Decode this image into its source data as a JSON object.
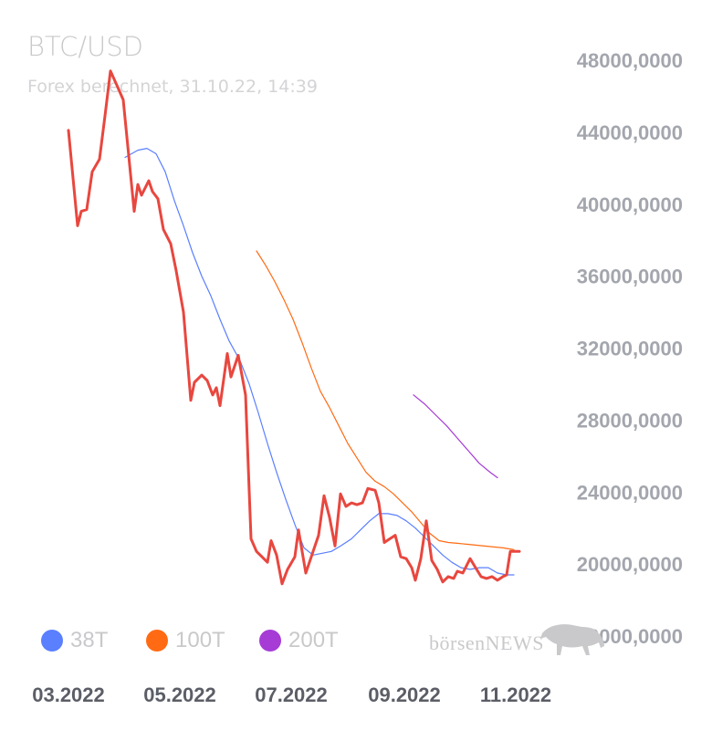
{
  "chart_data": {
    "type": "line",
    "title": "BTC/USD",
    "subtitle": "Forex berechnet, 31.10.22, 14:39",
    "x_range": [
      "2022-03-01",
      "2022-11-01"
    ],
    "ylim": [
      16000,
      48000
    ],
    "y_ticks": [
      "48000,0000",
      "44000,0000",
      "40000,0000",
      "36000,0000",
      "32000,0000",
      "28000,0000",
      "24000,0000",
      "20000,0000",
      "16000,0000"
    ],
    "y_tick_values": [
      48000,
      44000,
      40000,
      36000,
      32000,
      28000,
      24000,
      20000,
      16000
    ],
    "x_ticks": [
      "03.2022",
      "05.2022",
      "07.2022",
      "09.2022",
      "11.2022"
    ],
    "x_tick_dates": [
      "2022-03-01",
      "2022-05-01",
      "2022-07-01",
      "2022-09-01",
      "2022-11-01"
    ],
    "grid": false,
    "legend_position": "bottom-left",
    "series": [
      {
        "key": "price",
        "color": "#e8473f",
        "points": [
          [
            "2022-03-01",
            44100
          ],
          [
            "2022-03-06",
            38800
          ],
          [
            "2022-03-08",
            39600
          ],
          [
            "2022-03-11",
            39700
          ],
          [
            "2022-03-14",
            41800
          ],
          [
            "2022-03-18",
            42500
          ],
          [
            "2022-03-21",
            44900
          ],
          [
            "2022-03-24",
            47400
          ],
          [
            "2022-03-28",
            46500
          ],
          [
            "2022-03-31",
            45800
          ],
          [
            "2022-04-03",
            42700
          ],
          [
            "2022-04-06",
            39600
          ],
          [
            "2022-04-08",
            41100
          ],
          [
            "2022-04-10",
            40500
          ],
          [
            "2022-04-14",
            41300
          ],
          [
            "2022-04-16",
            40700
          ],
          [
            "2022-04-19",
            40300
          ],
          [
            "2022-04-22",
            38600
          ],
          [
            "2022-04-26",
            37800
          ],
          [
            "2022-04-29",
            36300
          ],
          [
            "2022-05-03",
            34000
          ],
          [
            "2022-05-07",
            29100
          ],
          [
            "2022-05-09",
            30100
          ],
          [
            "2022-05-13",
            30500
          ],
          [
            "2022-05-16",
            30200
          ],
          [
            "2022-05-19",
            29400
          ],
          [
            "2022-05-21",
            29800
          ],
          [
            "2022-05-23",
            28800
          ],
          [
            "2022-05-27",
            31700
          ],
          [
            "2022-05-29",
            30400
          ],
          [
            "2022-06-02",
            31600
          ],
          [
            "2022-06-06",
            29400
          ],
          [
            "2022-06-09",
            21400
          ],
          [
            "2022-06-12",
            20700
          ],
          [
            "2022-06-15",
            20400
          ],
          [
            "2022-06-18",
            20100
          ],
          [
            "2022-06-20",
            21300
          ],
          [
            "2022-06-23",
            20500
          ],
          [
            "2022-06-26",
            18900
          ],
          [
            "2022-06-29",
            19700
          ],
          [
            "2022-07-03",
            20400
          ],
          [
            "2022-07-05",
            21900
          ],
          [
            "2022-07-09",
            19500
          ],
          [
            "2022-07-13",
            20700
          ],
          [
            "2022-07-16",
            21600
          ],
          [
            "2022-07-19",
            23800
          ],
          [
            "2022-07-22",
            22600
          ],
          [
            "2022-07-25",
            21000
          ],
          [
            "2022-07-28",
            23900
          ],
          [
            "2022-07-31",
            23200
          ],
          [
            "2022-08-03",
            23400
          ],
          [
            "2022-08-06",
            23300
          ],
          [
            "2022-08-09",
            23400
          ],
          [
            "2022-08-12",
            24200
          ],
          [
            "2022-08-16",
            24100
          ],
          [
            "2022-08-18",
            23400
          ],
          [
            "2022-08-21",
            21200
          ],
          [
            "2022-08-24",
            21400
          ],
          [
            "2022-08-27",
            21600
          ],
          [
            "2022-08-30",
            20400
          ],
          [
            "2022-09-02",
            20300
          ],
          [
            "2022-09-05",
            19800
          ],
          [
            "2022-09-07",
            19100
          ],
          [
            "2022-09-10",
            20300
          ],
          [
            "2022-09-13",
            22400
          ],
          [
            "2022-09-16",
            20200
          ],
          [
            "2022-09-19",
            19700
          ],
          [
            "2022-09-22",
            19000
          ],
          [
            "2022-09-25",
            19300
          ],
          [
            "2022-09-28",
            19200
          ],
          [
            "2022-09-30",
            19600
          ],
          [
            "2022-10-03",
            19500
          ],
          [
            "2022-10-07",
            20300
          ],
          [
            "2022-10-10",
            19800
          ],
          [
            "2022-10-13",
            19300
          ],
          [
            "2022-10-16",
            19200
          ],
          [
            "2022-10-19",
            19300
          ],
          [
            "2022-10-22",
            19100
          ],
          [
            "2022-10-25",
            19300
          ],
          [
            "2022-10-27",
            19400
          ],
          [
            "2022-10-29",
            20700
          ],
          [
            "2022-10-31",
            20700
          ],
          [
            "2022-11-03",
            20700
          ]
        ]
      },
      {
        "key": "ma38",
        "name": "38T",
        "color": "#5a7fff",
        "points": [
          [
            "2022-04-01",
            42600
          ],
          [
            "2022-04-08",
            43000
          ],
          [
            "2022-04-13",
            43100
          ],
          [
            "2022-04-18",
            42800
          ],
          [
            "2022-04-23",
            41800
          ],
          [
            "2022-04-28",
            40200
          ],
          [
            "2022-05-03",
            38800
          ],
          [
            "2022-05-08",
            37300
          ],
          [
            "2022-05-13",
            36000
          ],
          [
            "2022-05-18",
            34900
          ],
          [
            "2022-05-23",
            33600
          ],
          [
            "2022-05-28",
            32400
          ],
          [
            "2022-06-03",
            31300
          ],
          [
            "2022-06-08",
            30000
          ],
          [
            "2022-06-13",
            28400
          ],
          [
            "2022-06-18",
            26700
          ],
          [
            "2022-06-23",
            25100
          ],
          [
            "2022-06-28",
            23600
          ],
          [
            "2022-07-03",
            22200
          ],
          [
            "2022-07-08",
            20900
          ],
          [
            "2022-07-13",
            20500
          ],
          [
            "2022-07-18",
            20600
          ],
          [
            "2022-07-23",
            20700
          ],
          [
            "2022-07-28",
            21000
          ],
          [
            "2022-08-03",
            21400
          ],
          [
            "2022-08-08",
            21900
          ],
          [
            "2022-08-13",
            22400
          ],
          [
            "2022-08-18",
            22800
          ],
          [
            "2022-08-23",
            22800
          ],
          [
            "2022-08-28",
            22700
          ],
          [
            "2022-09-02",
            22400
          ],
          [
            "2022-09-07",
            22000
          ],
          [
            "2022-09-12",
            21500
          ],
          [
            "2022-09-17",
            21000
          ],
          [
            "2022-09-22",
            20500
          ],
          [
            "2022-09-27",
            20100
          ],
          [
            "2022-10-02",
            19800
          ],
          [
            "2022-10-07",
            19700
          ],
          [
            "2022-10-12",
            19800
          ],
          [
            "2022-10-17",
            19800
          ],
          [
            "2022-10-22",
            19500
          ],
          [
            "2022-10-27",
            19400
          ],
          [
            "2022-10-31",
            19400
          ]
        ]
      },
      {
        "key": "ma100",
        "name": "100T",
        "color": "#ff6a13",
        "points": [
          [
            "2022-06-12",
            37400
          ],
          [
            "2022-06-17",
            36600
          ],
          [
            "2022-06-22",
            35700
          ],
          [
            "2022-06-27",
            34700
          ],
          [
            "2022-07-02",
            33600
          ],
          [
            "2022-07-07",
            32300
          ],
          [
            "2022-07-12",
            30900
          ],
          [
            "2022-07-17",
            29600
          ],
          [
            "2022-07-22",
            28700
          ],
          [
            "2022-07-27",
            27700
          ],
          [
            "2022-08-01",
            26700
          ],
          [
            "2022-08-06",
            25900
          ],
          [
            "2022-08-11",
            25100
          ],
          [
            "2022-08-16",
            24600
          ],
          [
            "2022-08-21",
            24300
          ],
          [
            "2022-08-26",
            23900
          ],
          [
            "2022-08-31",
            23400
          ],
          [
            "2022-09-05",
            22900
          ],
          [
            "2022-09-10",
            22300
          ],
          [
            "2022-09-15",
            21700
          ],
          [
            "2022-09-20",
            21300
          ],
          [
            "2022-09-25",
            21200
          ],
          [
            "2022-09-30",
            21150
          ],
          [
            "2022-10-05",
            21100
          ],
          [
            "2022-10-10",
            21050
          ],
          [
            "2022-10-15",
            21000
          ],
          [
            "2022-10-20",
            20950
          ],
          [
            "2022-10-25",
            20900
          ],
          [
            "2022-10-31",
            20800
          ]
        ]
      },
      {
        "key": "ma200",
        "name": "200T",
        "color": "#a63bd6",
        "points": [
          [
            "2022-09-06",
            29400
          ],
          [
            "2022-09-12",
            28900
          ],
          [
            "2022-09-18",
            28300
          ],
          [
            "2022-09-24",
            27700
          ],
          [
            "2022-09-30",
            27000
          ],
          [
            "2022-10-06",
            26300
          ],
          [
            "2022-10-12",
            25600
          ],
          [
            "2022-10-18",
            25100
          ],
          [
            "2022-10-22",
            24800
          ]
        ]
      }
    ]
  },
  "legend": [
    {
      "label": "38T",
      "color": "#5a7fff"
    },
    {
      "label": "100T",
      "color": "#ff6a13"
    },
    {
      "label": "200T",
      "color": "#a63bd6"
    }
  ],
  "brand": {
    "name": "börsenNEWS",
    "logo": "bull-icon"
  }
}
